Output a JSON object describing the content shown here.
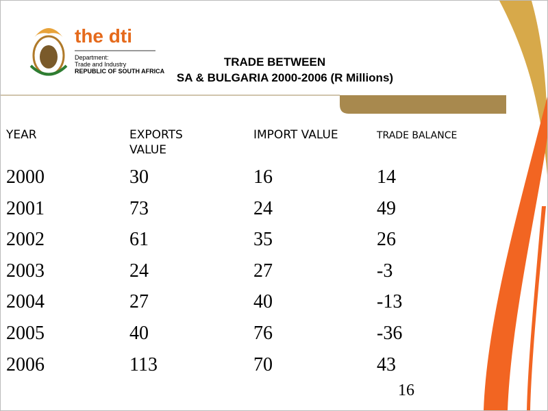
{
  "header": {
    "logo_text": "the dti",
    "department": [
      "Department:",
      "Trade and Industry",
      "REPUBLIC OF SOUTH AFRICA"
    ],
    "title": [
      "TRADE BETWEEN",
      "SA & BULGARIA 2000-2006 (R Millions)"
    ]
  },
  "table": {
    "columns": [
      "YEAR",
      "EXPORTS VALUE",
      "IMPORT VALUE",
      "TRADE BALANCE"
    ],
    "rows": [
      [
        2000,
        30,
        16,
        14
      ],
      [
        2001,
        73,
        24,
        49
      ],
      [
        2002,
        61,
        35,
        26
      ],
      [
        2003,
        24,
        27,
        -3
      ],
      [
        2004,
        27,
        40,
        -13
      ],
      [
        2005,
        40,
        76,
        -36
      ],
      [
        2006,
        113,
        70,
        43
      ]
    ]
  },
  "page_number": 16
}
